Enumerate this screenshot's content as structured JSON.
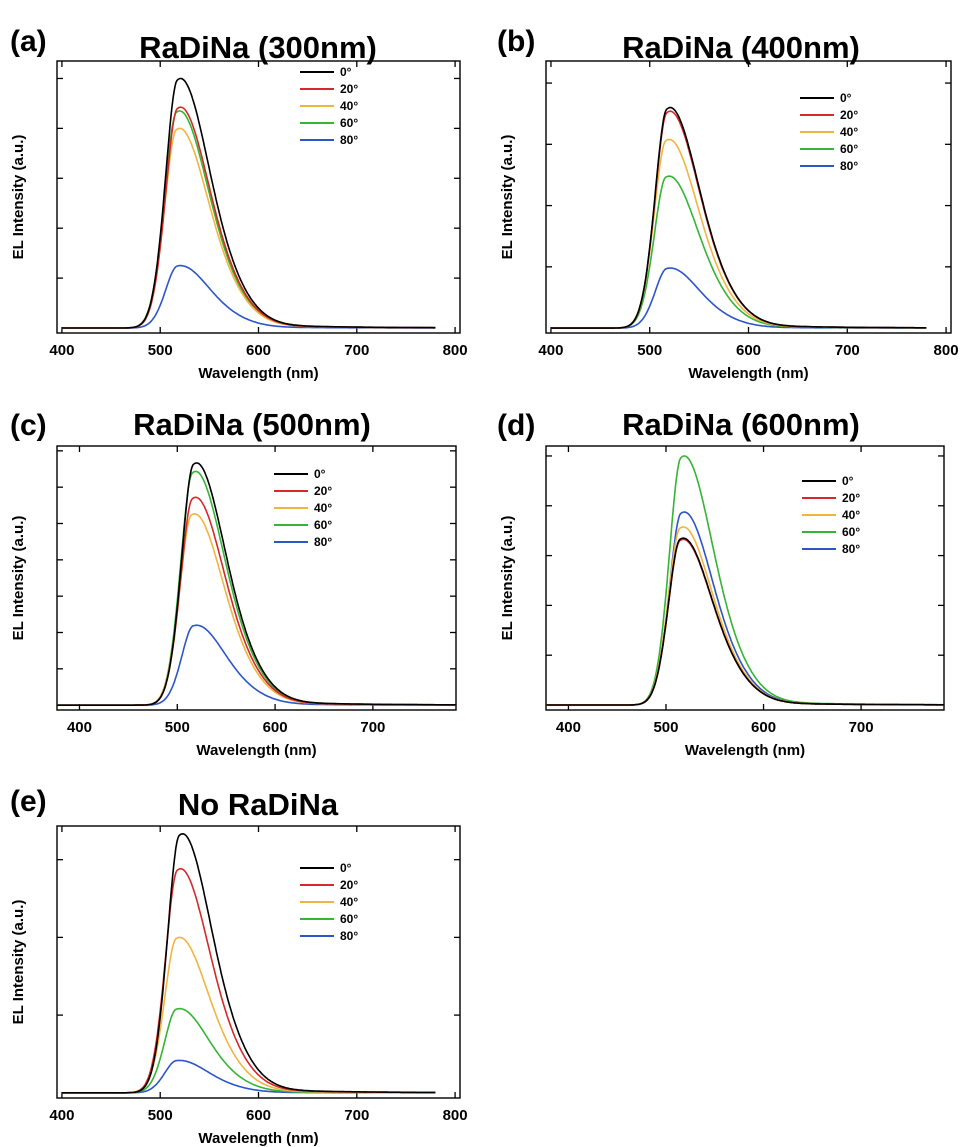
{
  "chart_data": [
    {
      "panel": "(a)",
      "title": "RaDiNa (300nm)",
      "type": "line",
      "xlabel": "Wavelength (nm)",
      "ylabel": "EL Intensity (a.u.)",
      "xlim": [
        395,
        805
      ],
      "xticks": [
        400,
        500,
        600,
        700,
        800
      ],
      "ylim": [
        -0.02,
        1.07
      ],
      "yticks": [
        0.2,
        0.4,
        0.6,
        0.8,
        1.0
      ],
      "y_tick_labels_shown": false,
      "grid": false,
      "legend_position": "top-right",
      "x_range_data": [
        400,
        780
      ],
      "series": [
        {
          "name": "0°",
          "color": "#000000",
          "peak_x": 517,
          "peak": 1.0
        },
        {
          "name": "20°",
          "color": "#d42a2a",
          "peak_x": 517,
          "peak": 0.885
        },
        {
          "name": "40°",
          "color": "#f2b440",
          "peak_x": 516,
          "peak": 0.8
        },
        {
          "name": "60°",
          "color": "#34b534",
          "peak_x": 516,
          "peak": 0.87
        },
        {
          "name": "80°",
          "color": "#2c55c8",
          "peak_x": 517,
          "peak": 0.25
        }
      ]
    },
    {
      "panel": "(b)",
      "title": "RaDiNa (400nm)",
      "type": "line",
      "xlabel": "Wavelength (nm)",
      "ylabel": "EL Intensity (a.u.)",
      "xlim": [
        395,
        805
      ],
      "xticks": [
        400,
        500,
        600,
        700,
        800
      ],
      "ylim": [
        -0.02,
        1.09
      ],
      "yticks": [
        0.25,
        0.5,
        0.75,
        1.0
      ],
      "y_tick_labels_shown": false,
      "grid": false,
      "legend_position": "top-right",
      "x_range_data": [
        400,
        780
      ],
      "series": [
        {
          "name": "0°",
          "color": "#000000",
          "peak_x": 517,
          "peak": 0.9
        },
        {
          "name": "20°",
          "color": "#d42a2a",
          "peak_x": 517,
          "peak": 0.885
        },
        {
          "name": "40°",
          "color": "#f2b440",
          "peak_x": 516,
          "peak": 0.77
        },
        {
          "name": "60°",
          "color": "#34b534",
          "peak_x": 516,
          "peak": 0.62
        },
        {
          "name": "80°",
          "color": "#2c55c8",
          "peak_x": 517,
          "peak": 0.245
        }
      ]
    },
    {
      "panel": "(c)",
      "title": "RaDiNa (500nm)",
      "type": "line",
      "xlabel": "Wavelength (nm)",
      "ylabel": "EL Intensity (a.u.)",
      "xlim": [
        377,
        785
      ],
      "xticks": [
        400,
        500,
        600,
        700
      ],
      "ylim": [
        -0.02,
        1.07
      ],
      "yticks": [
        0.15,
        0.3,
        0.45,
        0.6,
        0.75,
        0.9,
        1.05
      ],
      "y_tick_labels_shown": false,
      "grid": false,
      "legend_position": "top-right",
      "x_range_data": [
        377,
        785
      ],
      "series": [
        {
          "name": "0°",
          "color": "#000000",
          "peak_x": 516,
          "peak": 1.0
        },
        {
          "name": "20°",
          "color": "#d42a2a",
          "peak_x": 515,
          "peak": 0.858
        },
        {
          "name": "40°",
          "color": "#f2b440",
          "peak_x": 514,
          "peak": 0.79
        },
        {
          "name": "60°",
          "color": "#34b534",
          "peak_x": 515,
          "peak": 0.965
        },
        {
          "name": "80°",
          "color": "#2c55c8",
          "peak_x": 516,
          "peak": 0.33
        }
      ]
    },
    {
      "panel": "(d)",
      "title": "RaDiNa (600nm)",
      "type": "line",
      "xlabel": "Wavelength (nm)",
      "ylabel": "EL Intensity (a.u.)",
      "xlim": [
        377,
        785
      ],
      "xticks": [
        400,
        500,
        600,
        700
      ],
      "ylim": [
        -0.02,
        1.04
      ],
      "yticks": [
        0.2,
        0.4,
        0.6,
        0.8,
        1.0
      ],
      "y_tick_labels_shown": false,
      "grid": false,
      "legend_position": "top-right",
      "x_range_data": [
        377,
        785
      ],
      "series": [
        {
          "name": "0°",
          "color": "#000000",
          "peak_x": 514,
          "peak": 0.67
        },
        {
          "name": "20°",
          "color": "#d42a2a",
          "peak_x": 514,
          "peak": 0.665
        },
        {
          "name": "40°",
          "color": "#f2b440",
          "peak_x": 514,
          "peak": 0.715
        },
        {
          "name": "60°",
          "color": "#34b534",
          "peak_x": 515,
          "peak": 1.0
        },
        {
          "name": "80°",
          "color": "#2c55c8",
          "peak_x": 515,
          "peak": 0.775
        }
      ]
    },
    {
      "panel": "(e)",
      "title": "No RaDiNa",
      "type": "line",
      "xlabel": "Wavelength (nm)",
      "ylabel": "EL Intensity (a.u.)",
      "xlim": [
        395,
        805
      ],
      "xticks": [
        400,
        500,
        600,
        700,
        800
      ],
      "ylim": [
        -0.02,
        1.03
      ],
      "yticks": [
        0.3,
        0.6,
        0.9
      ],
      "y_tick_labels_shown": false,
      "grid": false,
      "legend_position": "top-right",
      "x_range_data": [
        400,
        780
      ],
      "series": [
        {
          "name": "0°",
          "color": "#000000",
          "peak_x": 519,
          "peak": 1.0
        },
        {
          "name": "20°",
          "color": "#d42a2a",
          "peak_x": 517,
          "peak": 0.865
        },
        {
          "name": "40°",
          "color": "#f2b440",
          "peak_x": 516,
          "peak": 0.6
        },
        {
          "name": "60°",
          "color": "#34b534",
          "peak_x": 516,
          "peak": 0.325
        },
        {
          "name": "80°",
          "color": "#2c55c8",
          "peak_x": 516,
          "peak": 0.125
        }
      ]
    }
  ]
}
